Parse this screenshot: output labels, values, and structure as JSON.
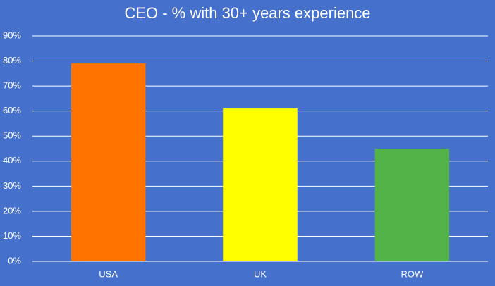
{
  "chart_data": {
    "type": "bar",
    "title": "CEO - % with 30+ years experience",
    "categories": [
      "USA",
      "UK",
      "ROW"
    ],
    "values": [
      79,
      61,
      45
    ],
    "colors": [
      "#ff7300",
      "#ffff00",
      "#53b348"
    ],
    "ylim": [
      0,
      90
    ],
    "yticks": [
      {
        "value": 0,
        "label": "0%"
      },
      {
        "value": 10,
        "label": "10%"
      },
      {
        "value": 20,
        "label": "20%"
      },
      {
        "value": 30,
        "label": "30%"
      },
      {
        "value": 40,
        "label": "40%"
      },
      {
        "value": 50,
        "label": "50%"
      },
      {
        "value": 60,
        "label": "60%"
      },
      {
        "value": 70,
        "label": "70%"
      },
      {
        "value": 80,
        "label": "80%"
      },
      {
        "value": 90,
        "label": "90%"
      }
    ],
    "grid": true
  }
}
